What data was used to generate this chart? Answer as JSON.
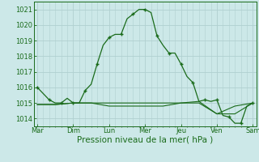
{
  "title": "",
  "xlabel": "Pression niveau de la mer( hPa )",
  "background_color": "#cce8e8",
  "plot_bg_color": "#cce8e8",
  "grid_color": "#b0d0d0",
  "line_color": "#1a6b1a",
  "x_labels": [
    "Mar",
    "Dim",
    "Lun",
    "Mer",
    "Jeu",
    "Ven",
    "Sam"
  ],
  "x_tick_positions": [
    0,
    1,
    2,
    3,
    4,
    5,
    6
  ],
  "ylim": [
    1013.5,
    1021.5
  ],
  "yticks": [
    1014,
    1015,
    1016,
    1017,
    1018,
    1019,
    1020,
    1021
  ],
  "series1_x": [
    0,
    0.167,
    0.333,
    0.5,
    0.667,
    0.833,
    1.0,
    1.167,
    1.333,
    1.5,
    1.667,
    1.833,
    2.0,
    2.167,
    2.333,
    2.5,
    2.667,
    2.833,
    3.0,
    3.167,
    3.333,
    3.5,
    3.667,
    3.833,
    4.0,
    4.167,
    4.333,
    4.5,
    4.667,
    4.833,
    5.0,
    5.167,
    5.333,
    5.5,
    5.667,
    5.833,
    6.0
  ],
  "series1_y": [
    1016.0,
    1015.6,
    1015.2,
    1015.0,
    1015.0,
    1015.3,
    1015.0,
    1015.0,
    1015.8,
    1016.2,
    1017.5,
    1018.7,
    1019.2,
    1019.4,
    1019.4,
    1020.4,
    1020.7,
    1021.0,
    1021.0,
    1020.8,
    1019.3,
    1018.7,
    1018.2,
    1018.2,
    1017.5,
    1016.7,
    1016.3,
    1015.1,
    1015.2,
    1015.1,
    1015.2,
    1014.2,
    1014.1,
    1013.7,
    1013.7,
    1014.8,
    1015.0
  ],
  "series2_x": [
    0,
    0.5,
    1.0,
    1.5,
    2.0,
    2.5,
    3.0,
    3.5,
    4.0,
    4.5,
    5.0,
    5.5,
    6.0
  ],
  "series2_y": [
    1014.9,
    1014.9,
    1015.0,
    1015.0,
    1015.0,
    1015.0,
    1015.0,
    1015.0,
    1015.0,
    1015.1,
    1014.3,
    1014.8,
    1015.0
  ],
  "series3_x": [
    0,
    0.5,
    1.0,
    1.5,
    2.0,
    2.5,
    3.0,
    3.5,
    4.0,
    4.5,
    5.0,
    5.5,
    6.0
  ],
  "series3_y": [
    1014.9,
    1014.9,
    1015.0,
    1015.0,
    1014.8,
    1014.8,
    1014.8,
    1014.8,
    1015.0,
    1015.0,
    1014.3,
    1014.3,
    1015.0
  ],
  "marker_x": [
    0,
    0.333,
    0.667,
    1.0,
    1.333,
    1.667,
    2.0,
    2.333,
    2.667,
    3.0,
    3.333,
    3.667,
    4.0,
    4.333,
    4.667,
    5.0,
    5.333,
    5.667,
    6.0
  ],
  "marker_y": [
    1016.0,
    1015.2,
    1015.0,
    1015.0,
    1015.8,
    1017.5,
    1019.2,
    1019.4,
    1020.7,
    1021.0,
    1019.3,
    1018.2,
    1017.5,
    1016.3,
    1015.2,
    1015.2,
    1014.1,
    1013.7,
    1015.0
  ]
}
